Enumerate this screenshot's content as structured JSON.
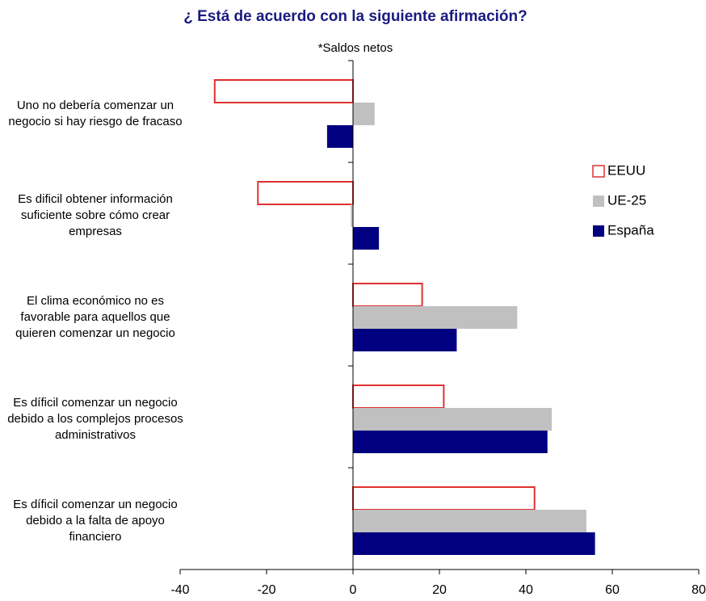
{
  "chart_data": {
    "type": "bar",
    "orientation": "horizontal",
    "title": "¿ Está de acuerdo con la siguiente afirmación?",
    "subtitle": "*Saldos netos",
    "categories": [
      "Uno no debería comenzar un negocio si hay riesgo de fracaso",
      "Es dificil obtener información suficiente sobre cómo crear empresas",
      "El clima económico no es favorable para aquellos que quieren comenzar un negocio",
      "Es díficil comenzar un negocio debido a los complejos procesos administrativos",
      "Es díficil comenzar un negocio debido a la falta de apoyo financiero"
    ],
    "series": [
      {
        "name": "EEUU",
        "color": "#ffffff",
        "edge": "#e03030",
        "values": [
          -32,
          -22,
          16,
          21,
          42
        ]
      },
      {
        "name": "UE-25",
        "color": "#c0c0c0",
        "values": [
          5,
          -0.5,
          38,
          46,
          54
        ]
      },
      {
        "name": "España",
        "color": "#000080",
        "values": [
          -6,
          6,
          24,
          45,
          56
        ]
      }
    ],
    "xlim": [
      -40,
      80
    ],
    "xticks": [
      -40,
      -20,
      0,
      20,
      40,
      60,
      80
    ]
  }
}
